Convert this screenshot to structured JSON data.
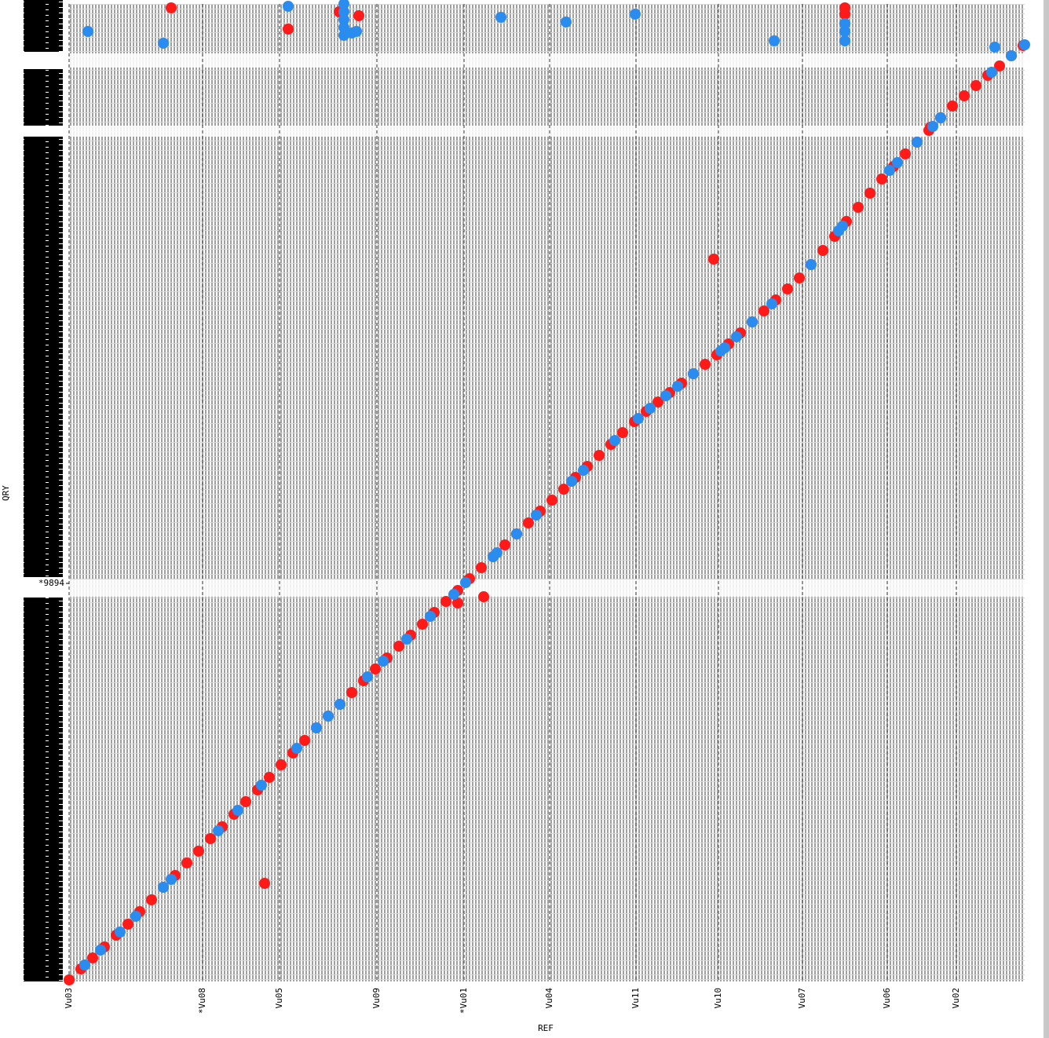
{
  "chart_data": {
    "type": "scatter",
    "x_label": "REF",
    "y_label": "QRY",
    "xlim": [
      0,
      1217
    ],
    "ylim": [
      0,
      1245
    ],
    "xticks": [
      {
        "value": 0,
        "label": "Vu03"
      },
      {
        "value": 170,
        "label": "*Vu08"
      },
      {
        "value": 268,
        "label": "Vu05"
      },
      {
        "value": 392,
        "label": "Vu09"
      },
      {
        "value": 503,
        "label": "*Vu01"
      },
      {
        "value": 612,
        "label": "Vu04"
      },
      {
        "value": 722,
        "label": "Vu11"
      },
      {
        "value": 827,
        "label": "Vu10"
      },
      {
        "value": 934,
        "label": "Vu07"
      },
      {
        "value": 1042,
        "label": "Vu06"
      },
      {
        "value": 1130,
        "label": "Vu02"
      }
    ],
    "yticks": [
      {
        "value": 507,
        "label": "*9894"
      }
    ],
    "grid": true,
    "series": [
      {
        "color": "#ff1a1a",
        "x": [
          0,
          15,
          30,
          45,
          60,
          75,
          90,
          105,
          120,
          135,
          150,
          165,
          180,
          195,
          210,
          225,
          240,
          255,
          270,
          285,
          300,
          315,
          330,
          345,
          360,
          375,
          390,
          405,
          420,
          435,
          450,
          465,
          480,
          495,
          510,
          525,
          540,
          555,
          570,
          585,
          600,
          615,
          630,
          645,
          660,
          675,
          690,
          705,
          720,
          735,
          750,
          765,
          780,
          795,
          810,
          825,
          840,
          855,
          870,
          885,
          900,
          915,
          930,
          945,
          960,
          975,
          990,
          1005,
          1020,
          1035,
          1050,
          1065,
          1080,
          1095,
          1110,
          1125,
          1140,
          1155,
          1170,
          1185,
          1200,
          1215,
          249,
          528,
          495,
          821,
          1097,
          130,
          279,
          369,
          344,
          988,
          988
        ],
        "values": [
          2,
          16,
          30,
          44,
          59,
          73,
          89,
          104,
          120,
          135,
          151,
          166,
          182,
          197,
          213,
          229,
          244,
          260,
          276,
          291,
          307,
          323,
          338,
          353,
          368,
          383,
          398,
          412,
          427,
          441,
          455,
          470,
          484,
          498,
          513,
          527,
          541,
          556,
          570,
          584,
          599,
          613,
          627,
          642,
          656,
          670,
          684,
          699,
          713,
          726,
          738,
          750,
          762,
          774,
          786,
          798,
          812,
          826,
          840,
          854,
          868,
          882,
          896,
          913,
          931,
          949,
          968,
          986,
          1004,
          1022,
          1038,
          1054,
          1069,
          1084,
          1100,
          1115,
          1128,
          1141,
          1154,
          1166,
          1179,
          1192,
          125,
          490,
          482,
          920,
          1088,
          1240,
          1213,
          1230,
          1235,
          1240,
          1232
        ]
      },
      {
        "color": "#2b8cf0",
        "x": [
          20,
          40,
          65,
          85,
          120,
          130,
          190,
          215,
          245,
          290,
          315,
          330,
          345,
          380,
          400,
          430,
          460,
          490,
          505,
          540,
          545,
          570,
          595,
          640,
          655,
          695,
          725,
          740,
          760,
          775,
          795,
          830,
          835,
          850,
          870,
          895,
          945,
          980,
          985,
          1045,
          1055,
          1080,
          1100,
          1110,
          1175,
          1200,
          1217,
          24,
          120,
          279,
          350,
          350,
          350,
          350,
          350,
          360,
          366,
          550,
          633,
          721,
          898,
          988,
          988,
          988,
          1179
        ],
        "values": [
          21,
          40,
          63,
          83,
          120,
          130,
          192,
          218,
          250,
          297,
          323,
          338,
          353,
          388,
          408,
          436,
          465,
          493,
          508,
          541,
          546,
          570,
          594,
          637,
          651,
          689,
          717,
          730,
          746,
          758,
          774,
          803,
          807,
          821,
          840,
          863,
          913,
          956,
          962,
          1033,
          1043,
          1069,
          1089,
          1100,
          1158,
          1179,
          1193,
          1210,
          1195,
          1242,
          1245,
          1235,
          1225,
          1215,
          1205,
          1208,
          1210,
          1228,
          1222,
          1232,
          1198,
          1220,
          1210,
          1198,
          1190
        ]
      }
    ]
  }
}
